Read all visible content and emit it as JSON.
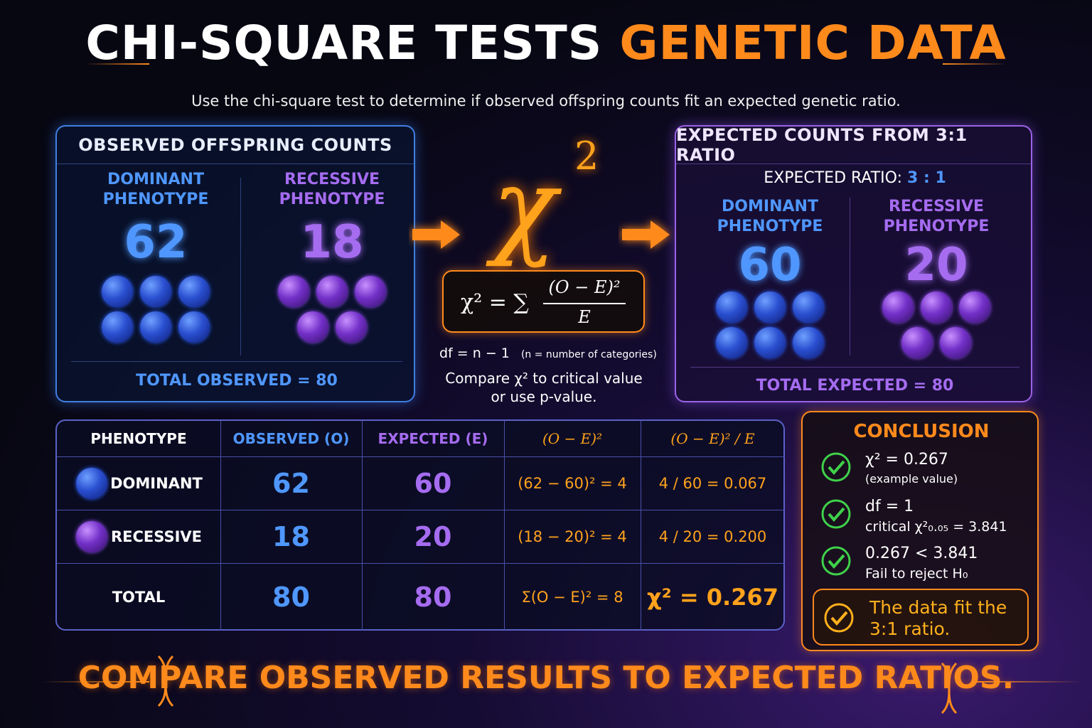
{
  "header": {
    "title_white": "CHI-SQUARE TESTS",
    "title_orange": "GENETIC DATA",
    "subtitle": "Use the chi-square test to determine if observed offspring counts fit an expected genetic ratio."
  },
  "observed_panel": {
    "title": "OBSERVED OFFSPRING COUNTS",
    "groups": [
      {
        "line1": "DOMINANT",
        "line2": "PHENOTYPE",
        "count": 62
      },
      {
        "line1": "RECESSIVE",
        "line2": "PHENOTYPE",
        "count": 18
      }
    ],
    "total": "TOTAL OBSERVED = 80"
  },
  "center": {
    "symbol": "χ",
    "exponent": "2",
    "formula_left": "χ² = ∑",
    "formula_numerator": "(O − E)²",
    "formula_denominator": "E",
    "df": "df = n − 1",
    "df_note": "(n = number of categories)",
    "compare_line1": "Compare χ² to critical value",
    "compare_line2": "or use p-value."
  },
  "expected_panel": {
    "title": "EXPECTED COUNTS FROM 3:1 RATIO",
    "ratio_label": "EXPECTED RATIO:",
    "ratio": "3 : 1",
    "groups": [
      {
        "line1": "DOMINANT",
        "line2": "PHENOTYPE",
        "count": 60
      },
      {
        "line1": "RECESSIVE",
        "line2": "PHENOTYPE",
        "count": 20
      }
    ],
    "total": "TOTAL EXPECTED = 80"
  },
  "table": {
    "header": [
      "PHENOTYPE",
      "OBSERVED (O)",
      "EXPECTED (E)",
      "(O − E)²",
      "(O − E)² / E"
    ],
    "rows": [
      [
        "DOMINANT",
        62,
        60,
        "(62 − 60)² = 4",
        "4 / 60 = 0.067"
      ],
      [
        "RECESSIVE",
        18,
        20,
        "(18 − 20)² = 4",
        "4 / 20 = 0.200"
      ],
      [
        "TOTAL",
        80,
        80,
        "Σ(O − E)² = 8",
        "χ² = 0.267"
      ]
    ]
  },
  "conclusion": {
    "title": "CONCLUSION",
    "items": [
      {
        "main": "χ² = 0.267",
        "sub": "(example value)"
      },
      {
        "main": "df = 1",
        "sub": "critical χ²₀.₀₅ = 3.841"
      },
      {
        "main": "0.267 < 3.841",
        "sub": "Fail to reject H₀"
      }
    ],
    "result": "The data fit the 3:1 ratio."
  },
  "footer": {
    "text": "COMPARE OBSERVED RESULTS TO EXPECTED RATIOS."
  }
}
